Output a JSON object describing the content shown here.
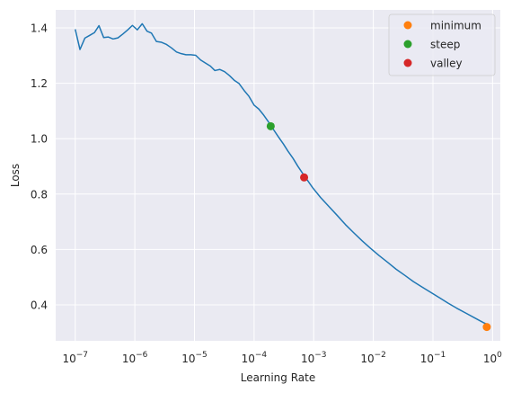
{
  "chart_data": {
    "type": "line",
    "xlabel": "Learning Rate",
    "ylabel": "Loss",
    "x_scale": "log",
    "xlim": [
      4.7e-08,
      1.35
    ],
    "ylim": [
      0.27,
      1.465
    ],
    "grid": true,
    "background": "#eaeaf2",
    "grid_color": "#ffffff",
    "x_tick_values": [
      1e-07,
      1e-06,
      1e-05,
      0.0001,
      0.001,
      0.01,
      0.1,
      1
    ],
    "x_tick_labels": [
      {
        "base": "10",
        "exp": "−7"
      },
      {
        "base": "10",
        "exp": "−6"
      },
      {
        "base": "10",
        "exp": "−5"
      },
      {
        "base": "10",
        "exp": "−4"
      },
      {
        "base": "10",
        "exp": "−3"
      },
      {
        "base": "10",
        "exp": "−2"
      },
      {
        "base": "10",
        "exp": "−1"
      },
      {
        "base": "10",
        "exp": "0"
      }
    ],
    "y_tick_values": [
      0.4,
      0.6,
      0.8,
      1.0,
      1.2,
      1.4
    ],
    "y_tick_labels": [
      "0.4",
      "0.6",
      "0.8",
      "1.0",
      "1.2",
      "1.4"
    ],
    "series": [
      {
        "color": "#1f77b4",
        "points": [
          [
            1e-07,
            1.395
          ],
          [
            1.2e-07,
            1.322
          ],
          [
            1.45e-07,
            1.363
          ],
          [
            1.75e-07,
            1.373
          ],
          [
            2.1e-07,
            1.383
          ],
          [
            2.5e-07,
            1.408
          ],
          [
            3e-07,
            1.365
          ],
          [
            3.6e-07,
            1.367
          ],
          [
            4.3e-07,
            1.36
          ],
          [
            5.2e-07,
            1.364
          ],
          [
            6.3e-07,
            1.378
          ],
          [
            7.6e-07,
            1.393
          ],
          [
            9.1e-07,
            1.409
          ],
          [
            1.1e-06,
            1.393
          ],
          [
            1.33e-06,
            1.415
          ],
          [
            1.6e-06,
            1.388
          ],
          [
            1.9e-06,
            1.381
          ],
          [
            2.3e-06,
            1.351
          ],
          [
            2.8e-06,
            1.348
          ],
          [
            3.4e-06,
            1.34
          ],
          [
            4.1e-06,
            1.328
          ],
          [
            5e-06,
            1.313
          ],
          [
            6e-06,
            1.307
          ],
          [
            7.2e-06,
            1.303
          ],
          [
            8.7e-06,
            1.303
          ],
          [
            1.05e-05,
            1.301
          ],
          [
            1.27e-05,
            1.284
          ],
          [
            1.53e-05,
            1.273
          ],
          [
            1.85e-05,
            1.262
          ],
          [
            2.2e-05,
            1.246
          ],
          [
            2.65e-05,
            1.25
          ],
          [
            3.2e-05,
            1.242
          ],
          [
            3.9e-05,
            1.227
          ],
          [
            4.7e-05,
            1.21
          ],
          [
            5.6e-05,
            1.199
          ],
          [
            6.8e-05,
            1.174
          ],
          [
            8.2e-05,
            1.153
          ],
          [
            0.0001,
            1.121
          ],
          [
            0.00012,
            1.107
          ],
          [
            0.000145,
            1.085
          ],
          [
            0.000175,
            1.06
          ],
          [
            0.00021,
            1.034
          ],
          [
            0.000255,
            1.007
          ],
          [
            0.00031,
            0.981
          ],
          [
            0.00037,
            0.955
          ],
          [
            0.00045,
            0.929
          ],
          [
            0.00054,
            0.901
          ],
          [
            0.00066,
            0.873
          ],
          [
            0.00079,
            0.849
          ],
          [
            0.00096,
            0.823
          ],
          [
            0.0013,
            0.788
          ],
          [
            0.0018,
            0.755
          ],
          [
            0.0025,
            0.722
          ],
          [
            0.0034,
            0.69
          ],
          [
            0.0047,
            0.66
          ],
          [
            0.0065,
            0.631
          ],
          [
            0.009,
            0.604
          ],
          [
            0.0125,
            0.578
          ],
          [
            0.0175,
            0.553
          ],
          [
            0.024,
            0.529
          ],
          [
            0.034,
            0.506
          ],
          [
            0.047,
            0.484
          ],
          [
            0.066,
            0.464
          ],
          [
            0.092,
            0.445
          ],
          [
            0.13,
            0.425
          ],
          [
            0.18,
            0.406
          ],
          [
            0.25,
            0.388
          ],
          [
            0.35,
            0.371
          ],
          [
            0.5,
            0.353
          ],
          [
            0.7,
            0.336
          ],
          [
            0.86,
            0.327
          ]
        ]
      }
    ],
    "markers": [
      {
        "name": "minimum",
        "x": 0.8,
        "y": 0.32,
        "color": "#ff7f0e"
      },
      {
        "name": "steep",
        "x": 0.00019,
        "y": 1.045,
        "color": "#2ca02c"
      },
      {
        "name": "valley",
        "x": 0.00069,
        "y": 0.86,
        "color": "#d62728"
      }
    ],
    "legend": {
      "position": "top-right",
      "entries": [
        {
          "label": "minimum",
          "color": "#ff7f0e"
        },
        {
          "label": "steep",
          "color": "#2ca02c"
        },
        {
          "label": "valley",
          "color": "#d62728"
        }
      ]
    }
  }
}
